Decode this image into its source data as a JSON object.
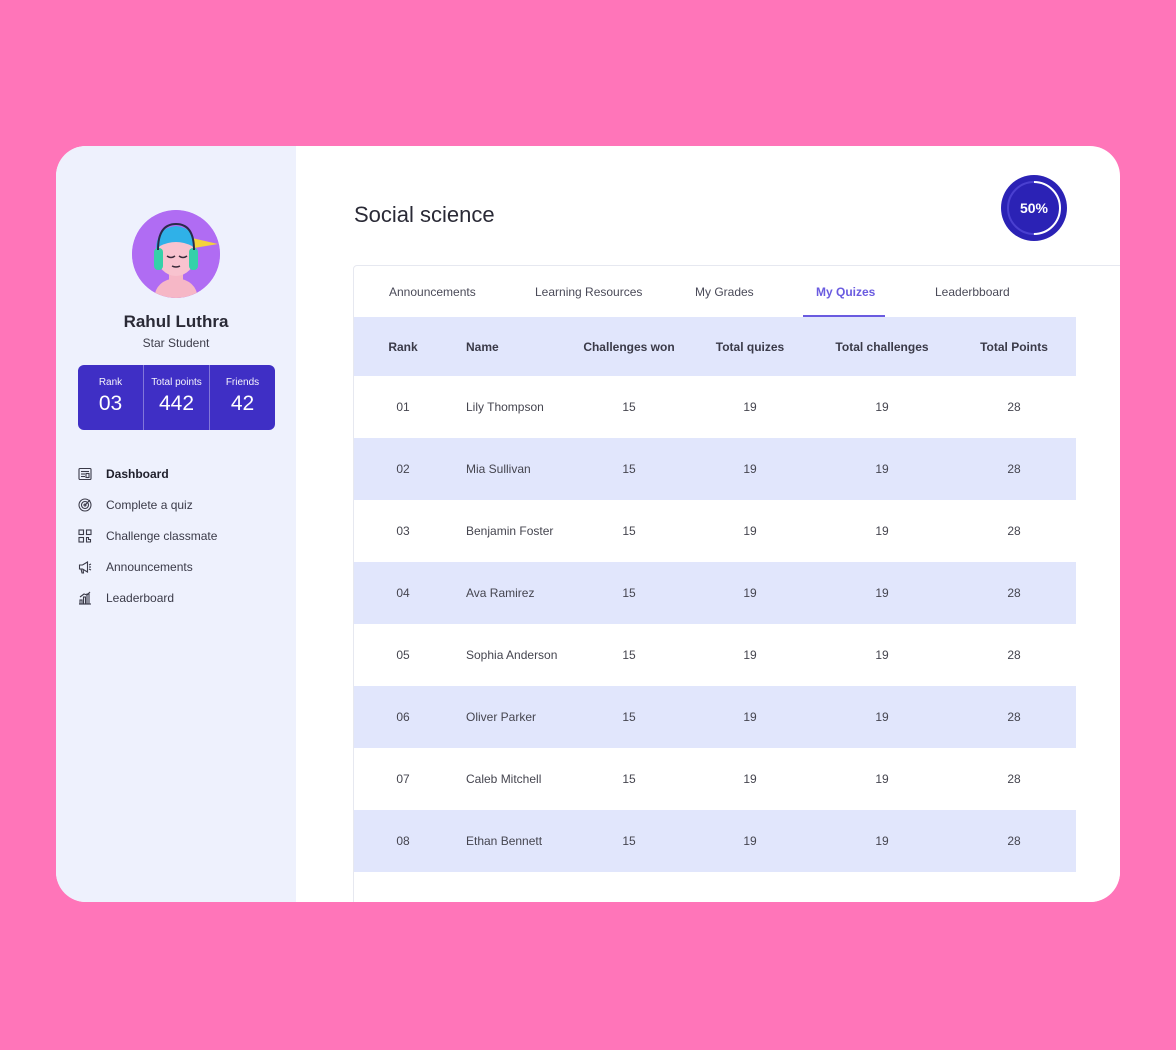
{
  "profile": {
    "name": "Rahul Luthra",
    "role": "Star Student",
    "stats": [
      {
        "label": "Rank",
        "value": "03"
      },
      {
        "label": "Total points",
        "value": "442"
      },
      {
        "label": "Friends",
        "value": "42"
      }
    ]
  },
  "sidebar": {
    "items": [
      {
        "label": "Dashboard",
        "icon": "dashboard-icon",
        "active": true
      },
      {
        "label": "Complete a quiz",
        "icon": "target-icon"
      },
      {
        "label": "Challenge classmate",
        "icon": "qr-icon"
      },
      {
        "label": "Announcements",
        "icon": "megaphone-icon"
      },
      {
        "label": "Leaderboard",
        "icon": "bar-chart-icon"
      }
    ]
  },
  "page": {
    "title": "Social science",
    "progress": "50%",
    "progress_value": 0.5
  },
  "tabs": [
    {
      "label": "Announcements"
    },
    {
      "label": "Learning Resources"
    },
    {
      "label": "My Grades"
    },
    {
      "label": "My Quizes",
      "active": true
    },
    {
      "label": "Leaderbboard"
    }
  ],
  "table": {
    "headers": [
      "Rank",
      "Name",
      "Challenges won",
      "Total quizes",
      "Total challenges",
      "Total Points"
    ],
    "rows": [
      [
        "01",
        "Lily Thompson",
        "15",
        "19",
        "19",
        "28"
      ],
      [
        "02",
        "Mia Sullivan",
        "15",
        "19",
        "19",
        "28"
      ],
      [
        "03",
        "Benjamin Foster",
        "15",
        "19",
        "19",
        "28"
      ],
      [
        "04",
        "Ava Ramirez",
        "15",
        "19",
        "19",
        "28"
      ],
      [
        "05",
        "Sophia Anderson",
        "15",
        "19",
        "19",
        "28"
      ],
      [
        "06",
        "Oliver Parker",
        "15",
        "19",
        "19",
        "28"
      ],
      [
        "07",
        "Caleb Mitchell",
        "15",
        "19",
        "19",
        "28"
      ],
      [
        "08",
        "Ethan Bennett",
        "15",
        "19",
        "19",
        "28"
      ]
    ]
  },
  "colors": {
    "background": "#ff75b9",
    "accent": "#3f2fc5",
    "tab_active": "#6a5be0",
    "row_alt": "#e1e6fc",
    "sidebar_bg": "#eef1fd"
  }
}
